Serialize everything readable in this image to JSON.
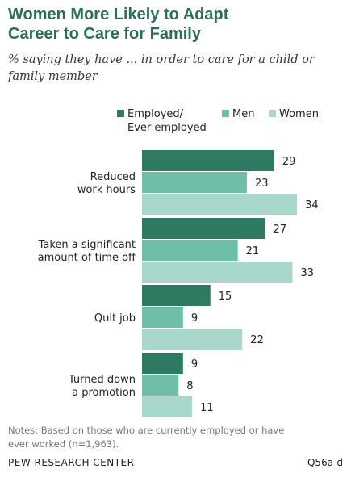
{
  "title_line1": "Women More Likely to Adapt",
  "title_line2": "Career to Care for Family",
  "subtitle_line1": "% saying they have ... in order to care for a child or",
  "subtitle_line2": "family member",
  "notes_line1": "Notes: Based on those who are currently employed or have",
  "notes_line2": "ever worked (n=1,963).",
  "source": "PEW RESEARCH CENTER",
  "question_ref": "Q56a-d",
  "colors": {
    "employed": "#2f7a63",
    "men": "#6fbfa8",
    "women": "#a8d8cb"
  },
  "chart_data": {
    "type": "bar",
    "orientation": "horizontal",
    "categories": [
      [
        "Reduced",
        "work hours"
      ],
      [
        "Taken a significant",
        "amount of time off"
      ],
      [
        "Quit job"
      ],
      [
        "Turned down",
        "a promotion"
      ]
    ],
    "series": [
      {
        "name": [
          "Employed/",
          "Ever employed"
        ],
        "values": [
          29,
          27,
          15,
          9
        ]
      },
      {
        "name": [
          "Men"
        ],
        "values": [
          23,
          21,
          9,
          8
        ]
      },
      {
        "name": [
          "Women"
        ],
        "values": [
          34,
          33,
          22,
          11
        ]
      }
    ],
    "legend_position": "top"
  }
}
